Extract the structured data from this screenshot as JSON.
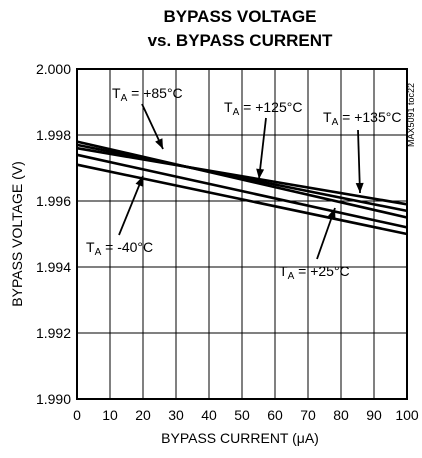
{
  "chart_data": {
    "type": "line",
    "title_line1": "BYPASS VOLTAGE",
    "title_line2": "vs. BYPASS CURRENT",
    "xlabel": "BYPASS CURRENT (μA)",
    "ylabel": "BYPASS VOLTAGE (V)",
    "xlim": [
      0,
      100
    ],
    "ylim": [
      1.99,
      2.0
    ],
    "x_ticks": [
      "0",
      "10",
      "20",
      "30",
      "40",
      "50",
      "60",
      "70",
      "80",
      "90",
      "100"
    ],
    "y_ticks": [
      "1.990",
      "1.992",
      "1.994",
      "1.996",
      "1.998",
      "2.000"
    ],
    "grid": true,
    "side_code": "MAX5091 toc22",
    "series": [
      {
        "name": "TA = +85°C",
        "x": [
          0,
          100
        ],
        "y": [
          1.9978,
          1.9955
        ]
      },
      {
        "name": "TA = +125°C",
        "x": [
          0,
          100
        ],
        "y": [
          1.9977,
          1.9957
        ]
      },
      {
        "name": "TA = +135°C",
        "x": [
          0,
          100
        ],
        "y": [
          1.9976,
          1.9959
        ]
      },
      {
        "name": "TA = +25°C",
        "x": [
          0,
          100
        ],
        "y": [
          1.9974,
          1.9952
        ]
      },
      {
        "name": "TA = -40°C",
        "x": [
          0,
          100
        ],
        "y": [
          1.9971,
          1.995
        ]
      }
    ],
    "annotations": [
      {
        "prefix": "T",
        "sub": "A",
        "text": " = +85°C"
      },
      {
        "prefix": "T",
        "sub": "A",
        "text": " = +125°C"
      },
      {
        "prefix": "T",
        "sub": "A",
        "text": " = +135°C"
      },
      {
        "prefix": "T",
        "sub": "A",
        "text": " = -40°C"
      },
      {
        "prefix": "T",
        "sub": "A",
        "text": " = +25°C"
      }
    ]
  }
}
